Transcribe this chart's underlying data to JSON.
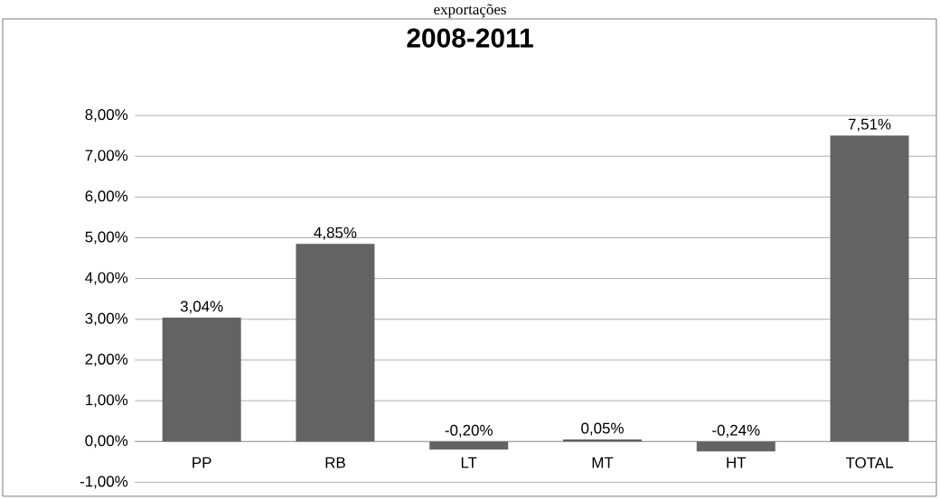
{
  "chart_data": {
    "type": "bar",
    "title": "2008-2011",
    "annotations": [
      "exportações"
    ],
    "categories": [
      "PP",
      "RB",
      "LT",
      "MT",
      "HT",
      "TOTAL"
    ],
    "values": [
      3.04,
      4.85,
      -0.2,
      0.05,
      -0.24,
      7.51
    ],
    "value_labels": [
      "3,04%",
      "4,85%",
      "-0,20%",
      "0,05%",
      "-0,24%",
      "7,51%"
    ],
    "color": "#636363",
    "ylim": [
      -1,
      8
    ],
    "yticks": [
      {
        "value": -1,
        "label": "-1,00%"
      },
      {
        "value": 0,
        "label": "0,00%"
      },
      {
        "value": 1,
        "label": "1,00%"
      },
      {
        "value": 2,
        "label": "2,00%"
      },
      {
        "value": 3,
        "label": "3,00%"
      },
      {
        "value": 4,
        "label": "4,00%"
      },
      {
        "value": 5,
        "label": "5,00%"
      },
      {
        "value": 6,
        "label": "6,00%"
      },
      {
        "value": 7,
        "label": "7,00%"
      },
      {
        "value": 8,
        "label": "8,00%"
      }
    ],
    "grid": "y"
  }
}
